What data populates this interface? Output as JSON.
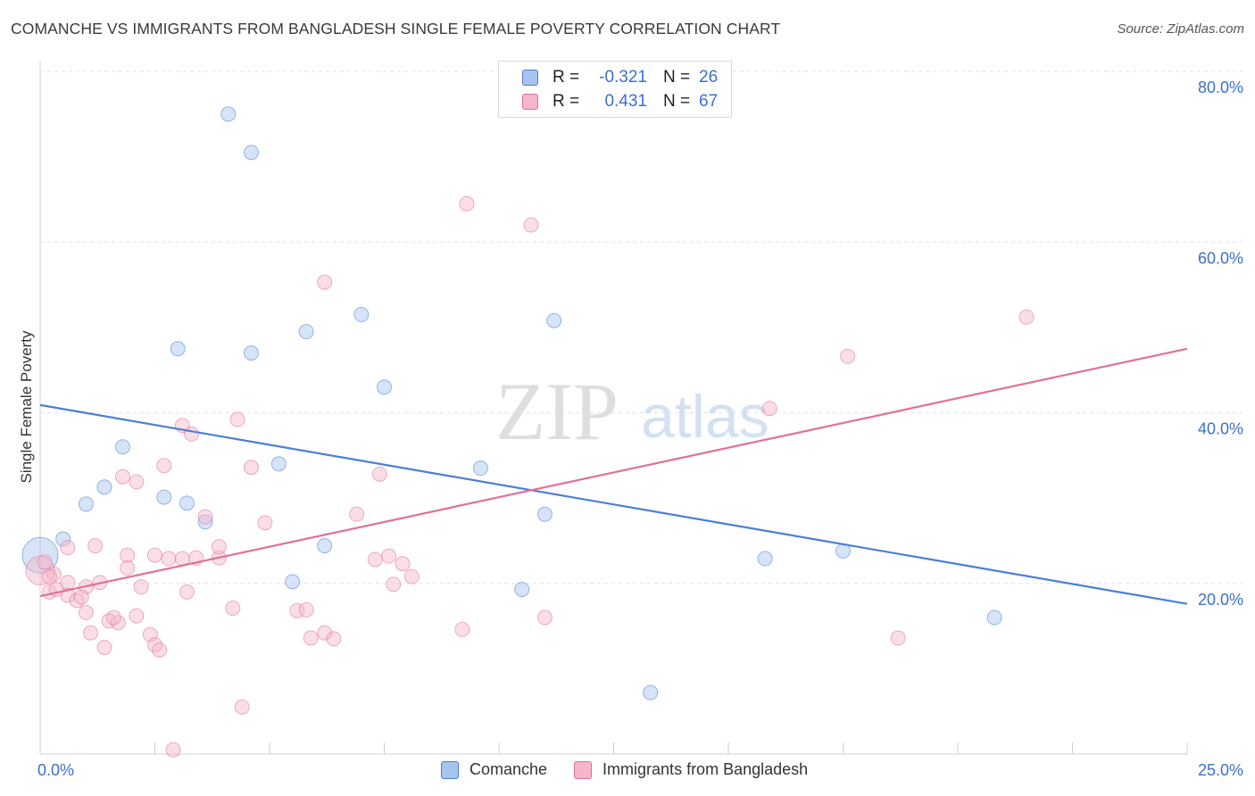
{
  "header": {
    "title": "COMANCHE VS IMMIGRANTS FROM BANGLADESH SINGLE FEMALE POVERTY CORRELATION CHART",
    "source": "Source: ZipAtlas.com"
  },
  "watermark": {
    "zip": "ZIP",
    "atlas": "atlas"
  },
  "legend": {
    "rows": [
      {
        "r_label": "R =",
        "r_value": "-0.321",
        "n_label": "N =",
        "n_value": "26",
        "color": "#a7c4ef"
      },
      {
        "r_label": "R =",
        "r_value": "0.431",
        "n_label": "N =",
        "n_value": "67",
        "color": "#f4b6c8"
      }
    ]
  },
  "chart_data": {
    "type": "scatter",
    "title": "COMANCHE VS IMMIGRANTS FROM BANGLADESH SINGLE FEMALE POVERTY CORRELATION CHART",
    "xlabel": "",
    "ylabel": "Single Female Poverty",
    "xlim": [
      0,
      25
    ],
    "ylim": [
      0,
      80
    ],
    "x_tick_labels": [
      "0.0%",
      "25.0%"
    ],
    "y_ticks": [
      20,
      40,
      60,
      80
    ],
    "y_tick_labels": [
      "20.0%",
      "40.0%",
      "60.0%",
      "80.0%"
    ],
    "grid": "horizontal dashed",
    "legend_position": "bottom-center",
    "series": [
      {
        "name": "Comanche",
        "color": "#4a7fd4",
        "fill": "#a7c4ef",
        "trend": {
          "x": [
            0,
            25
          ],
          "y": [
            40.9,
            17.6
          ]
        },
        "points": [
          [
            4.1,
            75
          ],
          [
            4.6,
            70.5
          ],
          [
            3.0,
            47.5
          ],
          [
            4.6,
            47
          ],
          [
            5.8,
            49.5
          ],
          [
            7.0,
            51.5
          ],
          [
            7.5,
            43
          ],
          [
            11.2,
            50.8
          ],
          [
            1.8,
            36
          ],
          [
            5.2,
            34
          ],
          [
            9.6,
            33.5
          ],
          [
            1.4,
            31.3
          ],
          [
            1.0,
            29.3
          ],
          [
            2.7,
            30.1
          ],
          [
            3.2,
            29.4
          ],
          [
            3.6,
            27.2
          ],
          [
            11.0,
            28.1
          ],
          [
            0.5,
            25.2
          ],
          [
            6.2,
            24.4
          ],
          [
            5.5,
            20.2
          ],
          [
            10.5,
            19.3
          ],
          [
            15.8,
            22.9
          ],
          [
            17.5,
            23.8
          ],
          [
            20.8,
            16
          ],
          [
            13.3,
            7.2
          ],
          [
            0.0,
            23.3
          ]
        ]
      },
      {
        "name": "Immigrants from Bangladesh",
        "color": "#e0709a",
        "fill": "#f4b6c8",
        "trend": {
          "x": [
            0,
            25
          ],
          "y": [
            18.5,
            47.5
          ]
        },
        "points": [
          [
            9.3,
            64.5
          ],
          [
            10.7,
            62
          ],
          [
            6.2,
            55.3
          ],
          [
            21.5,
            51.2
          ],
          [
            17.6,
            46.6
          ],
          [
            15.9,
            40.5
          ],
          [
            3.1,
            38.5
          ],
          [
            3.3,
            37.5
          ],
          [
            4.3,
            39.2
          ],
          [
            2.7,
            33.8
          ],
          [
            4.6,
            33.6
          ],
          [
            1.8,
            32.5
          ],
          [
            2.1,
            31.9
          ],
          [
            7.4,
            32.8
          ],
          [
            3.6,
            27.8
          ],
          [
            4.9,
            27.1
          ],
          [
            6.9,
            28.1
          ],
          [
            0.6,
            24.2
          ],
          [
            1.2,
            24.4
          ],
          [
            1.9,
            23.3
          ],
          [
            2.5,
            23.3
          ],
          [
            2.8,
            22.9
          ],
          [
            3.1,
            22.9
          ],
          [
            3.4,
            23
          ],
          [
            3.9,
            23
          ],
          [
            3.9,
            24.3
          ],
          [
            7.3,
            22.8
          ],
          [
            7.6,
            23.2
          ],
          [
            7.9,
            22.3
          ],
          [
            8.1,
            20.8
          ],
          [
            1.9,
            21.8
          ],
          [
            0.3,
            21.1
          ],
          [
            0.6,
            20.1
          ],
          [
            1.3,
            20.1
          ],
          [
            1.0,
            19.6
          ],
          [
            2.2,
            19.6
          ],
          [
            0.6,
            18.6
          ],
          [
            0.8,
            18.0
          ],
          [
            3.2,
            19
          ],
          [
            0.2,
            19
          ],
          [
            0.9,
            18.4
          ],
          [
            7.7,
            19.9
          ],
          [
            1.0,
            16.6
          ],
          [
            2.1,
            16.2
          ],
          [
            1.5,
            15.6
          ],
          [
            1.7,
            15.4
          ],
          [
            1.6,
            16.0
          ],
          [
            4.2,
            17.1
          ],
          [
            5.6,
            16.8
          ],
          [
            5.8,
            16.9
          ],
          [
            11.0,
            16
          ],
          [
            1.1,
            14.2
          ],
          [
            2.4,
            14
          ],
          [
            5.9,
            13.6
          ],
          [
            6.2,
            14.2
          ],
          [
            6.4,
            13.5
          ],
          [
            9.2,
            14.6
          ],
          [
            18.7,
            13.6
          ],
          [
            1.4,
            12.5
          ],
          [
            2.5,
            12.8
          ],
          [
            2.6,
            12.2
          ],
          [
            4.4,
            5.5
          ],
          [
            2.9,
            0.5
          ],
          [
            0.0,
            21.5
          ],
          [
            0.1,
            22.5
          ],
          [
            0.2,
            20.8
          ],
          [
            0.35,
            19.3
          ]
        ]
      }
    ]
  }
}
